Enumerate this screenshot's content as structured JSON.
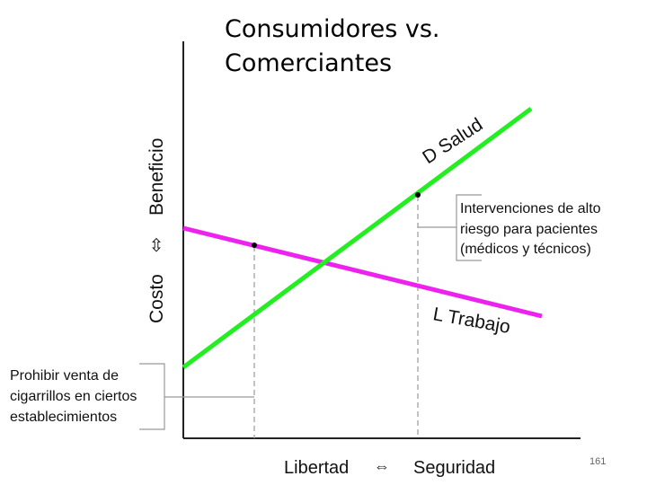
{
  "slide": {
    "title_line1": "Consumidores vs.",
    "title_line2": "Comerciantes",
    "page_number": "161"
  },
  "diagram": {
    "y_axis": {
      "label_bottom": "Costo",
      "arrow_glyph": "⇳",
      "label_top": "Beneficio"
    },
    "x_axis": {
      "label_left": "Libertad",
      "arrow_glyph": "⇔",
      "label_right": "Seguridad"
    },
    "lines": {
      "demand": {
        "label": "D Salud",
        "color": "#22ee22"
      },
      "supply": {
        "label": "L Trabajo",
        "color": "#ee22ee"
      }
    },
    "annotations": {
      "left": {
        "line1": "Prohibir venta de",
        "line2": "cigarrillos en ciertos",
        "line3": "establecimientos"
      },
      "right": {
        "line1": "Intervenciones de alto",
        "line2": "riesgo para pacientes",
        "line3": "(médicos y  técnicos)"
      }
    }
  }
}
